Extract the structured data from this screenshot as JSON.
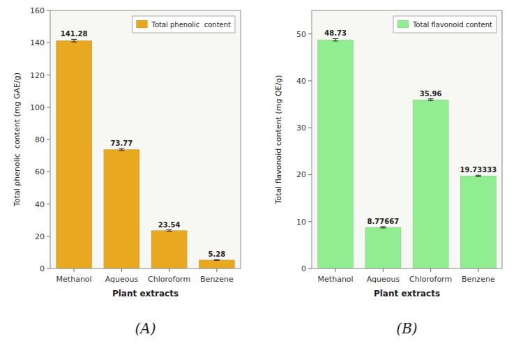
{
  "chart_data": [
    {
      "type": "bar",
      "subtitle": "(A)",
      "xlabel": "Plant extracts",
      "ylabel": "Total phenolic  content (mg GAE/g)",
      "categories": [
        "Methanol",
        "Aqueous",
        "Chloroform",
        "Benzene"
      ],
      "series": [
        {
          "name": "Total phenolic  content",
          "color": "#E8A820",
          "values": [
            141.28,
            73.77,
            23.54,
            5.28
          ],
          "errors": [
            0.8,
            0.6,
            0.4,
            0.2
          ]
        }
      ],
      "ylim": [
        0,
        160
      ],
      "yticks": [
        0,
        20,
        40,
        60,
        80,
        100,
        120,
        140,
        160
      ],
      "data_labels": true,
      "legend": "upper right",
      "grid": false
    },
    {
      "type": "bar",
      "subtitle": "(B)",
      "xlabel": "Plant extracts",
      "ylabel": "Total flavonoid content (mg QE/g)",
      "categories": [
        "Methanol",
        "Aqueous",
        "Chloroform",
        "Benzene"
      ],
      "series": [
        {
          "name": "Total flavonoid content",
          "color": "#90EE90",
          "values": [
            48.73,
            8.77667,
            35.96,
            19.73333
          ],
          "errors": [
            0.25,
            0.15,
            0.2,
            0.15
          ]
        }
      ],
      "ylim": [
        0,
        55
      ],
      "yticks": [
        0,
        10,
        20,
        30,
        40,
        50
      ],
      "data_labels": true,
      "legend": "upper right",
      "grid": false
    }
  ]
}
